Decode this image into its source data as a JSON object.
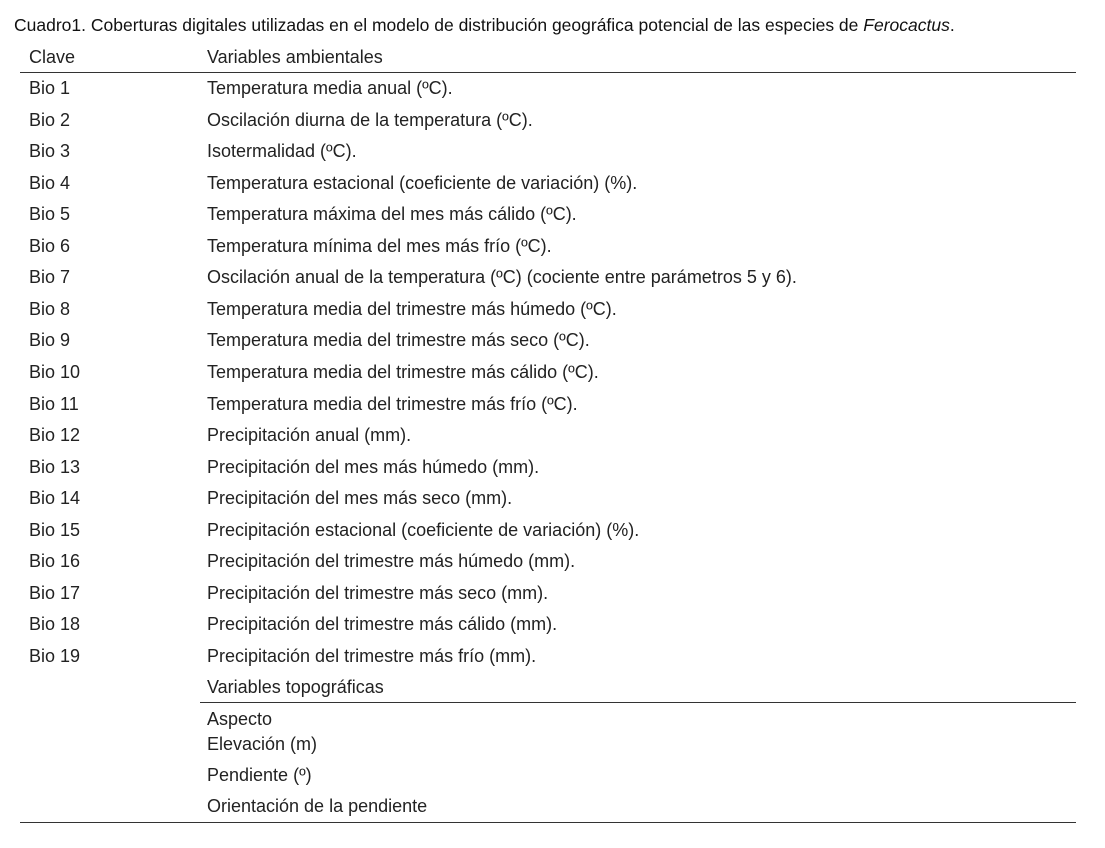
{
  "caption": {
    "text": "Cuadro1. Coberturas digitales utilizadas en el modelo de distribución geográfica potencial de las especies de ",
    "italic": "Ferocactus",
    "end": "."
  },
  "table": {
    "header": [
      "Clave",
      "Variables ambientales"
    ],
    "rows": [
      [
        "Bio 1",
        "Temperatura media anual (ºC)."
      ],
      [
        "Bio 2",
        "Oscilación diurna de la temperatura (ºC)."
      ],
      [
        "Bio 3",
        "Isotermalidad (ºC)."
      ],
      [
        "Bio 4",
        "Temperatura estacional (coeficiente de variación) (%)."
      ],
      [
        "Bio 5",
        "Temperatura máxima del mes más cálido (ºC)."
      ],
      [
        "Bio 6",
        "Temperatura mínima del mes más frío (ºC)."
      ],
      [
        "Bio 7",
        "Oscilación anual de la temperatura (ºC) (cociente entre parámetros 5 y 6)."
      ],
      [
        "Bio 8",
        "Temperatura media del trimestre más húmedo (ºC)."
      ],
      [
        "Bio 9",
        "Temperatura media del trimestre más seco (ºC)."
      ],
      [
        "Bio 10",
        "Temperatura media del trimestre más cálido (ºC)."
      ],
      [
        "Bio 11",
        "Temperatura media del trimestre más frío (ºC)."
      ],
      [
        "Bio 12",
        "Precipitación anual (mm)."
      ],
      [
        "Bio 13",
        "Precipitación del mes más húmedo (mm)."
      ],
      [
        "Bio 14",
        "Precipitación del mes más seco (mm)."
      ],
      [
        "Bio 15",
        "Precipitación estacional (coeficiente de variación) (%)."
      ],
      [
        "Bio 16",
        "Precipitación del trimestre más húmedo (mm)."
      ],
      [
        "Bio 17",
        "Precipitación del trimestre más seco (mm)."
      ],
      [
        "Bio 18",
        "Precipitación del trimestre más cálido (mm)."
      ],
      [
        "Bio 19",
        "Precipitación del trimestre más frío (mm)."
      ]
    ],
    "section": {
      "title": "Variables topográficas",
      "rows": [
        "Aspecto",
        "Elevación (m)",
        "Pendiente (º)",
        "Orientación de la pendiente"
      ]
    }
  }
}
